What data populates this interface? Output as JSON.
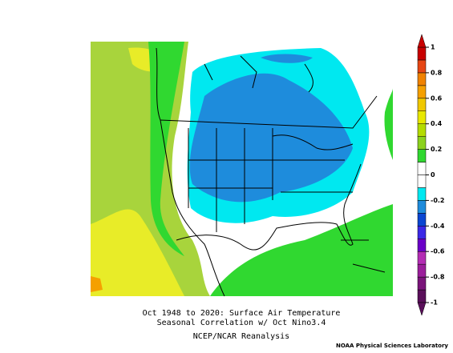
{
  "title_lines": [
    "Oct 1948 to 2020: Surface Air Temperature",
    "Seasonal Correlation w/ Oct Nino3.4"
  ],
  "source": "NCEP/NCAR Reanalysis",
  "credit": "NOAA Physical Sciences Laboratory",
  "colorbar": {
    "clim": [
      -1,
      1
    ],
    "ticks": [
      1,
      0.8,
      0.6,
      0.4,
      0.2,
      0,
      -0.2,
      -0.4,
      -0.6,
      -0.8,
      -1
    ],
    "colors": [
      "#5a0f5a",
      "#7a147a",
      "#9b1e9b",
      "#b42db4",
      "#6a00c8",
      "#3a28e6",
      "#0a46d2",
      "#1e8cdc",
      "#00e8f0",
      "#ffffff",
      "#ffffff",
      "#30d830",
      "#8cd21e",
      "#b4dc00",
      "#e8e800",
      "#f0c800",
      "#f5a000",
      "#f08200",
      "#e64614",
      "#c80000"
    ]
  }
}
